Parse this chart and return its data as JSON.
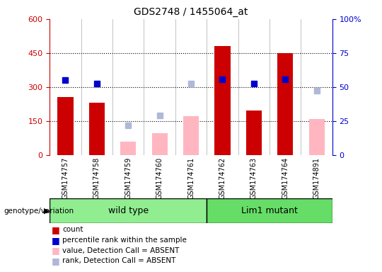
{
  "title": "GDS2748 / 1455064_at",
  "samples": [
    "GSM174757",
    "GSM174758",
    "GSM174759",
    "GSM174760",
    "GSM174761",
    "GSM174762",
    "GSM174763",
    "GSM174764",
    "GSM174891"
  ],
  "count": [
    255,
    230,
    null,
    null,
    null,
    480,
    195,
    450,
    null
  ],
  "percentile_rank": [
    330,
    315,
    null,
    null,
    null,
    335,
    315,
    335,
    null
  ],
  "absent_value": [
    null,
    null,
    60,
    95,
    170,
    null,
    null,
    null,
    160
  ],
  "absent_rank": [
    null,
    null,
    130,
    175,
    315,
    null,
    null,
    null,
    285
  ],
  "count_color": "#cc0000",
  "percentile_color": "#0000cc",
  "absent_value_color": "#ffb6c1",
  "absent_rank_color": "#b0b8d8",
  "left_ylim": [
    0,
    600
  ],
  "left_yticks": [
    0,
    150,
    300,
    450,
    600
  ],
  "right_ylim": [
    0,
    100
  ],
  "right_yticks": [
    0,
    25,
    50,
    75,
    100
  ],
  "right_yticklabels": [
    "0",
    "25",
    "50",
    "75",
    "100%"
  ],
  "xlabel_color": "#cc0000",
  "right_label_color": "#0000cc",
  "plot_bg_color": "#ffffff",
  "sample_bg_color": "#c8c8c8",
  "group_wt_color": "#90ee90",
  "group_lm_color": "#66dd66",
  "title_fontsize": 10,
  "bar_width": 0.5,
  "marker_size": 6
}
